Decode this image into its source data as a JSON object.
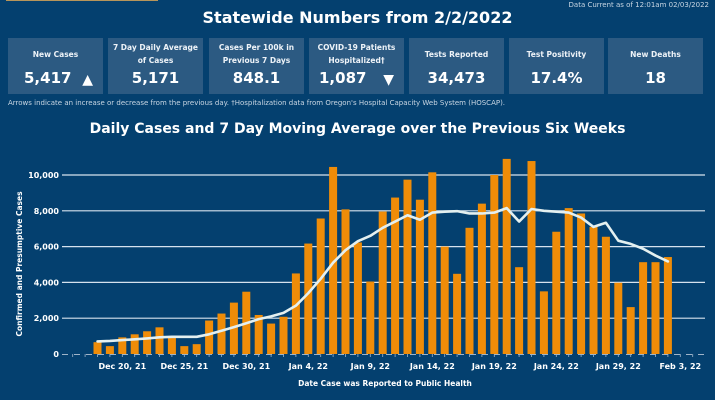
{
  "header": {
    "title": "Statewide Numbers from 2/2/2022",
    "data_current": "Data Current as of 12:01am 02/03/2022"
  },
  "cards": [
    {
      "label": "New Cases",
      "value": "5,417",
      "trend": "up",
      "arrow": "▲"
    },
    {
      "label": "7 Day Daily Average of Cases",
      "value": "5,171"
    },
    {
      "label": "Cases Per 100k in Previous 7 Days",
      "value": "848.1"
    },
    {
      "label": "COVID-19 Patients Hospitalized†",
      "value": "1,087",
      "trend": "down",
      "arrow": "▼"
    },
    {
      "label": "Tests Reported",
      "value": "34,473"
    },
    {
      "label": "Test Positivity",
      "value": "17.4%"
    },
    {
      "label": "New Deaths",
      "value": "18"
    }
  ],
  "footnote": "Arrows indicate an increase or decrease from the previous day. †Hospitalization data from Oregon's Hospital Capacity Web System (HOSCAP).",
  "colors": {
    "background": "#04406f",
    "card": "#2c5a82",
    "bar": "#ef8c08",
    "line": "#e4f0f0",
    "gridline": "#d6e2ee",
    "accent_frame": "#b8955a"
  },
  "chart_data": {
    "type": "bar",
    "title": "Daily Cases and 7 Day Moving Average over the Previous Six Weeks",
    "xlabel": "Date Case was Reported to Public Health",
    "ylabel": "Confirmed and Presumptive Cases",
    "ylim": [
      0,
      10500
    ],
    "yticks": [
      0,
      2000,
      4000,
      6000,
      8000,
      10000
    ],
    "ytick_labels": [
      "0",
      "2,000",
      "4,000",
      "6,000",
      "8,000",
      "10,000"
    ],
    "grid": true,
    "xtick_labels": [
      "Dec 20, 21",
      "Dec 25, 21",
      "Dec 30, 21",
      "Jan 4, 22",
      "Jan 9, 22",
      "Jan 14, 22",
      "Jan 19, 22",
      "Jan 24, 22",
      "Jan 29, 22",
      "Feb 3, 22"
    ],
    "xtick_index": [
      2,
      7,
      12,
      17,
      22,
      27,
      32,
      37,
      42,
      47
    ],
    "x_start": "Dec 18, 21",
    "x_slots": 48,
    "categories": [
      "Dec 18",
      "Dec 19",
      "Dec 20",
      "Dec 21",
      "Dec 22",
      "Dec 23",
      "Dec 24",
      "Dec 25",
      "Dec 26",
      "Dec 27",
      "Dec 28",
      "Dec 29",
      "Dec 30",
      "Dec 31",
      "Jan 1",
      "Jan 2",
      "Jan 3",
      "Jan 4",
      "Jan 5",
      "Jan 6",
      "Jan 7",
      "Jan 8",
      "Jan 9",
      "Jan 10",
      "Jan 11",
      "Jan 12",
      "Jan 13",
      "Jan 14",
      "Jan 15",
      "Jan 16",
      "Jan 17",
      "Jan 18",
      "Jan 19",
      "Jan 20",
      "Jan 21",
      "Jan 22",
      "Jan 23",
      "Jan 24",
      "Jan 25",
      "Jan 26",
      "Jan 27",
      "Jan 28",
      "Jan 29",
      "Jan 30",
      "Jan 31",
      "Feb 1",
      "Feb 2"
    ],
    "series": [
      {
        "name": "Daily Cases",
        "type": "bar",
        "values": [
          660,
          440,
          930,
          1100,
          1270,
          1490,
          930,
          440,
          550,
          1870,
          2260,
          2870,
          3480,
          2180,
          1700,
          2080,
          4500,
          6170,
          7570,
          10450,
          8080,
          6230,
          4050,
          7960,
          8740,
          9740,
          8620,
          10150,
          6000,
          4480,
          7050,
          8400,
          10000,
          10900,
          4850,
          10780,
          3500,
          6830,
          8150,
          7850,
          7100,
          6550,
          3980,
          2620,
          5130,
          5130,
          5417
        ]
      },
      {
        "name": "7 Day Moving Average",
        "type": "line",
        "values": [
          700,
          730,
          780,
          820,
          870,
          930,
          960,
          960,
          960,
          1100,
          1300,
          1500,
          1720,
          1950,
          2100,
          2300,
          2700,
          3400,
          4200,
          5100,
          5800,
          6300,
          6600,
          7050,
          7400,
          7750,
          7500,
          7900,
          7950,
          7980,
          7850,
          7850,
          7900,
          8150,
          7400,
          8100,
          8000,
          7950,
          7900,
          7620,
          7100,
          7330,
          6330,
          6150,
          5880,
          5500,
          5171
        ]
      }
    ]
  }
}
